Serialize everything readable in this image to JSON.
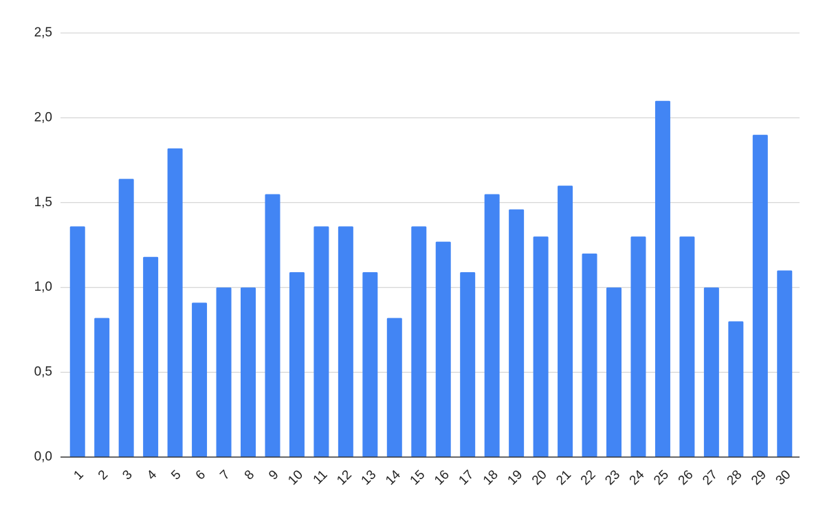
{
  "chart_data": {
    "type": "bar",
    "categories": [
      "1",
      "2",
      "3",
      "4",
      "5",
      "6",
      "7",
      "8",
      "9",
      "10",
      "11",
      "12",
      "13",
      "14",
      "15",
      "16",
      "17",
      "18",
      "19",
      "20",
      "21",
      "22",
      "23",
      "24",
      "25",
      "26",
      "27",
      "28",
      "29",
      "30"
    ],
    "values": [
      1.36,
      0.82,
      1.64,
      1.18,
      1.82,
      0.91,
      1.0,
      1.0,
      1.55,
      1.09,
      1.36,
      1.36,
      1.09,
      0.82,
      1.36,
      1.27,
      1.09,
      1.55,
      1.46,
      1.3,
      1.6,
      1.2,
      1.0,
      1.3,
      2.1,
      1.3,
      1.0,
      0.8,
      1.9,
      1.1
    ],
    "color": "#4285f4",
    "ylim": [
      0,
      2.5
    ],
    "yticks": [
      {
        "value": 0,
        "label": "0,0"
      },
      {
        "value": 0.5,
        "label": "0,5"
      },
      {
        "value": 1,
        "label": "1,0"
      },
      {
        "value": 1.5,
        "label": "1,5"
      },
      {
        "value": 2,
        "label": "2,0"
      },
      {
        "value": 2.5,
        "label": "2,5"
      }
    ],
    "grid": true
  }
}
